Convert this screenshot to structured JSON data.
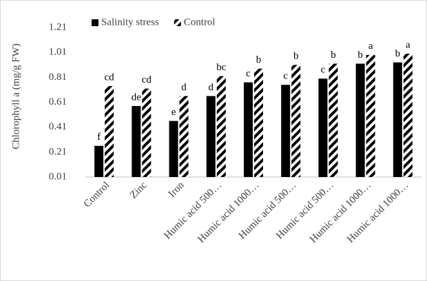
{
  "chart_data": {
    "type": "bar",
    "y_label": "Chlorophyll a (mg/g FW)",
    "categories": [
      "Control",
      "Zinc",
      "Iron",
      "Humic acid 500…",
      "Humic acid 1000…",
      "Humic acid 500…",
      "Humic acid 500…",
      "Humic acid 1000…",
      "Humic acid 1000…"
    ],
    "series": [
      {
        "name": "Salinity stress",
        "color": "#000000",
        "fill_style": "solid",
        "values": [
          0.26,
          0.58,
          0.46,
          0.66,
          0.77,
          0.75,
          0.8,
          0.92,
          0.93
        ],
        "letters": [
          "f",
          "de",
          "e",
          "d",
          "c",
          "c",
          "c",
          "b",
          "b"
        ]
      },
      {
        "name": "Control",
        "color": "#000000",
        "fill_style": "hatched",
        "values": [
          0.74,
          0.72,
          0.66,
          0.82,
          0.88,
          0.91,
          0.92,
          0.99,
          1.0
        ],
        "letters": [
          "cd",
          "cd",
          "d",
          "bc",
          "b",
          "b",
          "b",
          "a",
          "a"
        ]
      }
    ],
    "ylim": [
      0.01,
      1.21
    ],
    "yticks": [
      0.01,
      0.21,
      0.41,
      0.61,
      0.81,
      1.01,
      1.21
    ],
    "legend": "top"
  }
}
